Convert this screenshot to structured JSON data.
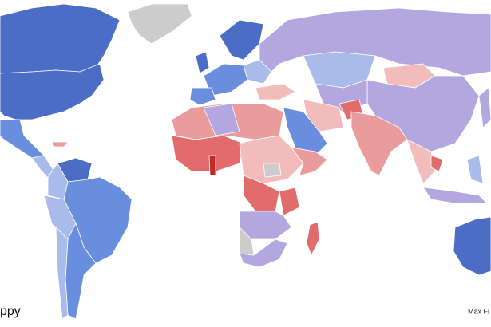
{
  "title_fragment": "ppy",
  "credit_fragment": "Max Fi"
}
